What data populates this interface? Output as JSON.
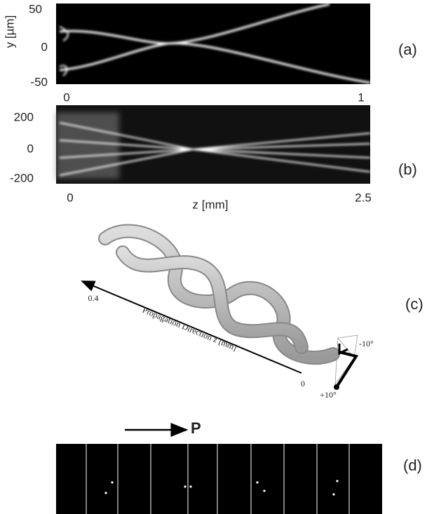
{
  "panels": [
    {
      "label": "(a)",
      "y_axis_label": "y [µm]",
      "y_tick_labels": [
        "50",
        "0",
        "-50"
      ],
      "x_tick_labels": [
        "0",
        "1"
      ]
    },
    {
      "label": "(b)",
      "y_tick_labels": [
        "200",
        "0",
        "-200"
      ],
      "x_tick_labels": [
        "0",
        "2.5"
      ],
      "x_axis_label": "z [mm]"
    },
    {
      "label": "(c)",
      "axis_label": "Propagation Direction z [mm]",
      "axis_start": "0",
      "axis_end": "0.4",
      "angle_top": "-10°",
      "angle_bottom": "+10°"
    },
    {
      "label": "(d)",
      "arrow_label": "P"
    }
  ]
}
